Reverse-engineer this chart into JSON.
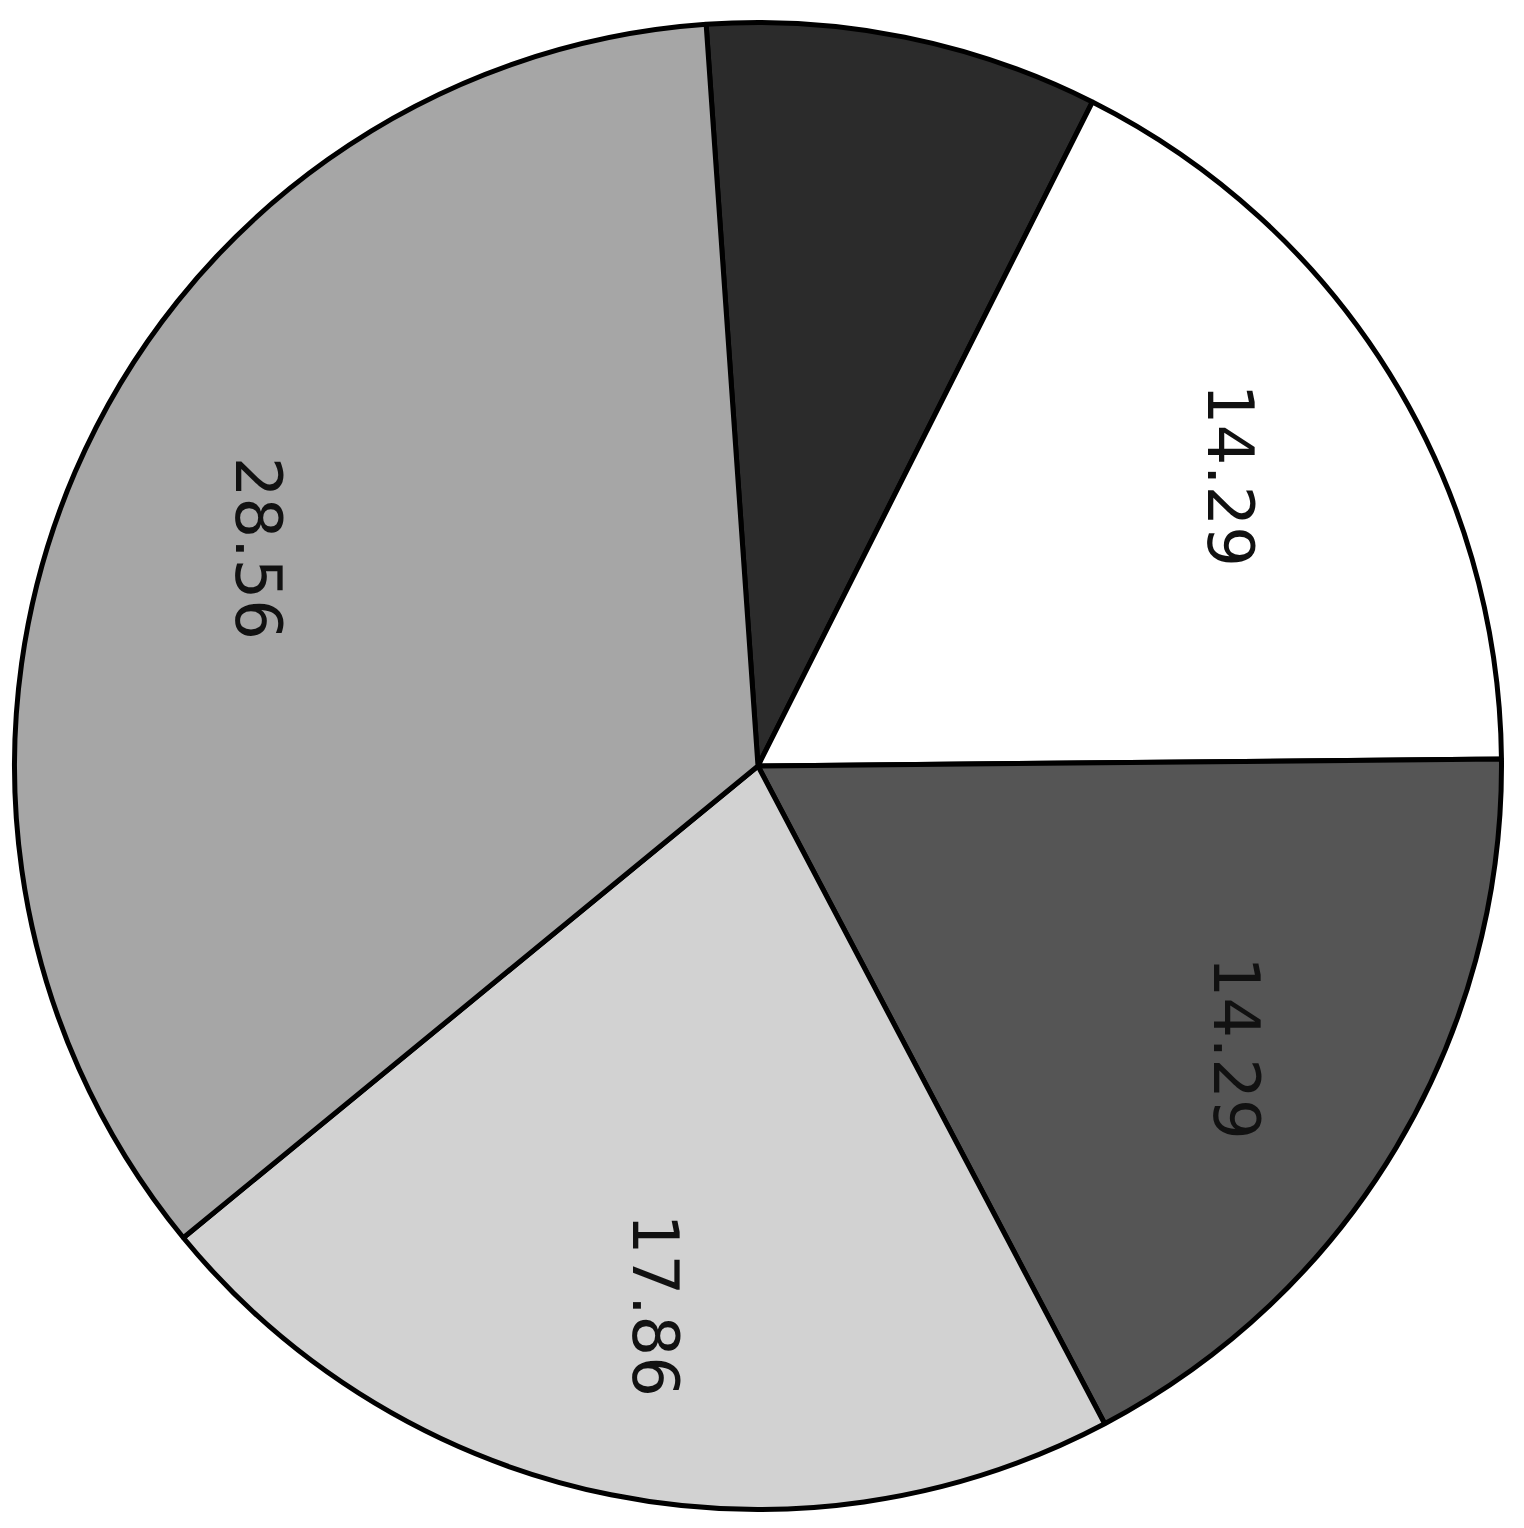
{
  "chart_data": {
    "type": "pie",
    "categories": [
      null,
      null,
      null,
      null,
      null
    ],
    "values": [
      7,
      14.29,
      14.29,
      17.86,
      28.56
    ],
    "colors": [
      "#2b2b2b",
      "#ffffff",
      "#555555",
      "#d2d2d2",
      "#a6a6a6"
    ],
    "value_labels": [
      null,
      "14.29",
      "14.29",
      "17.86",
      "28.56"
    ],
    "legend": false
  }
}
